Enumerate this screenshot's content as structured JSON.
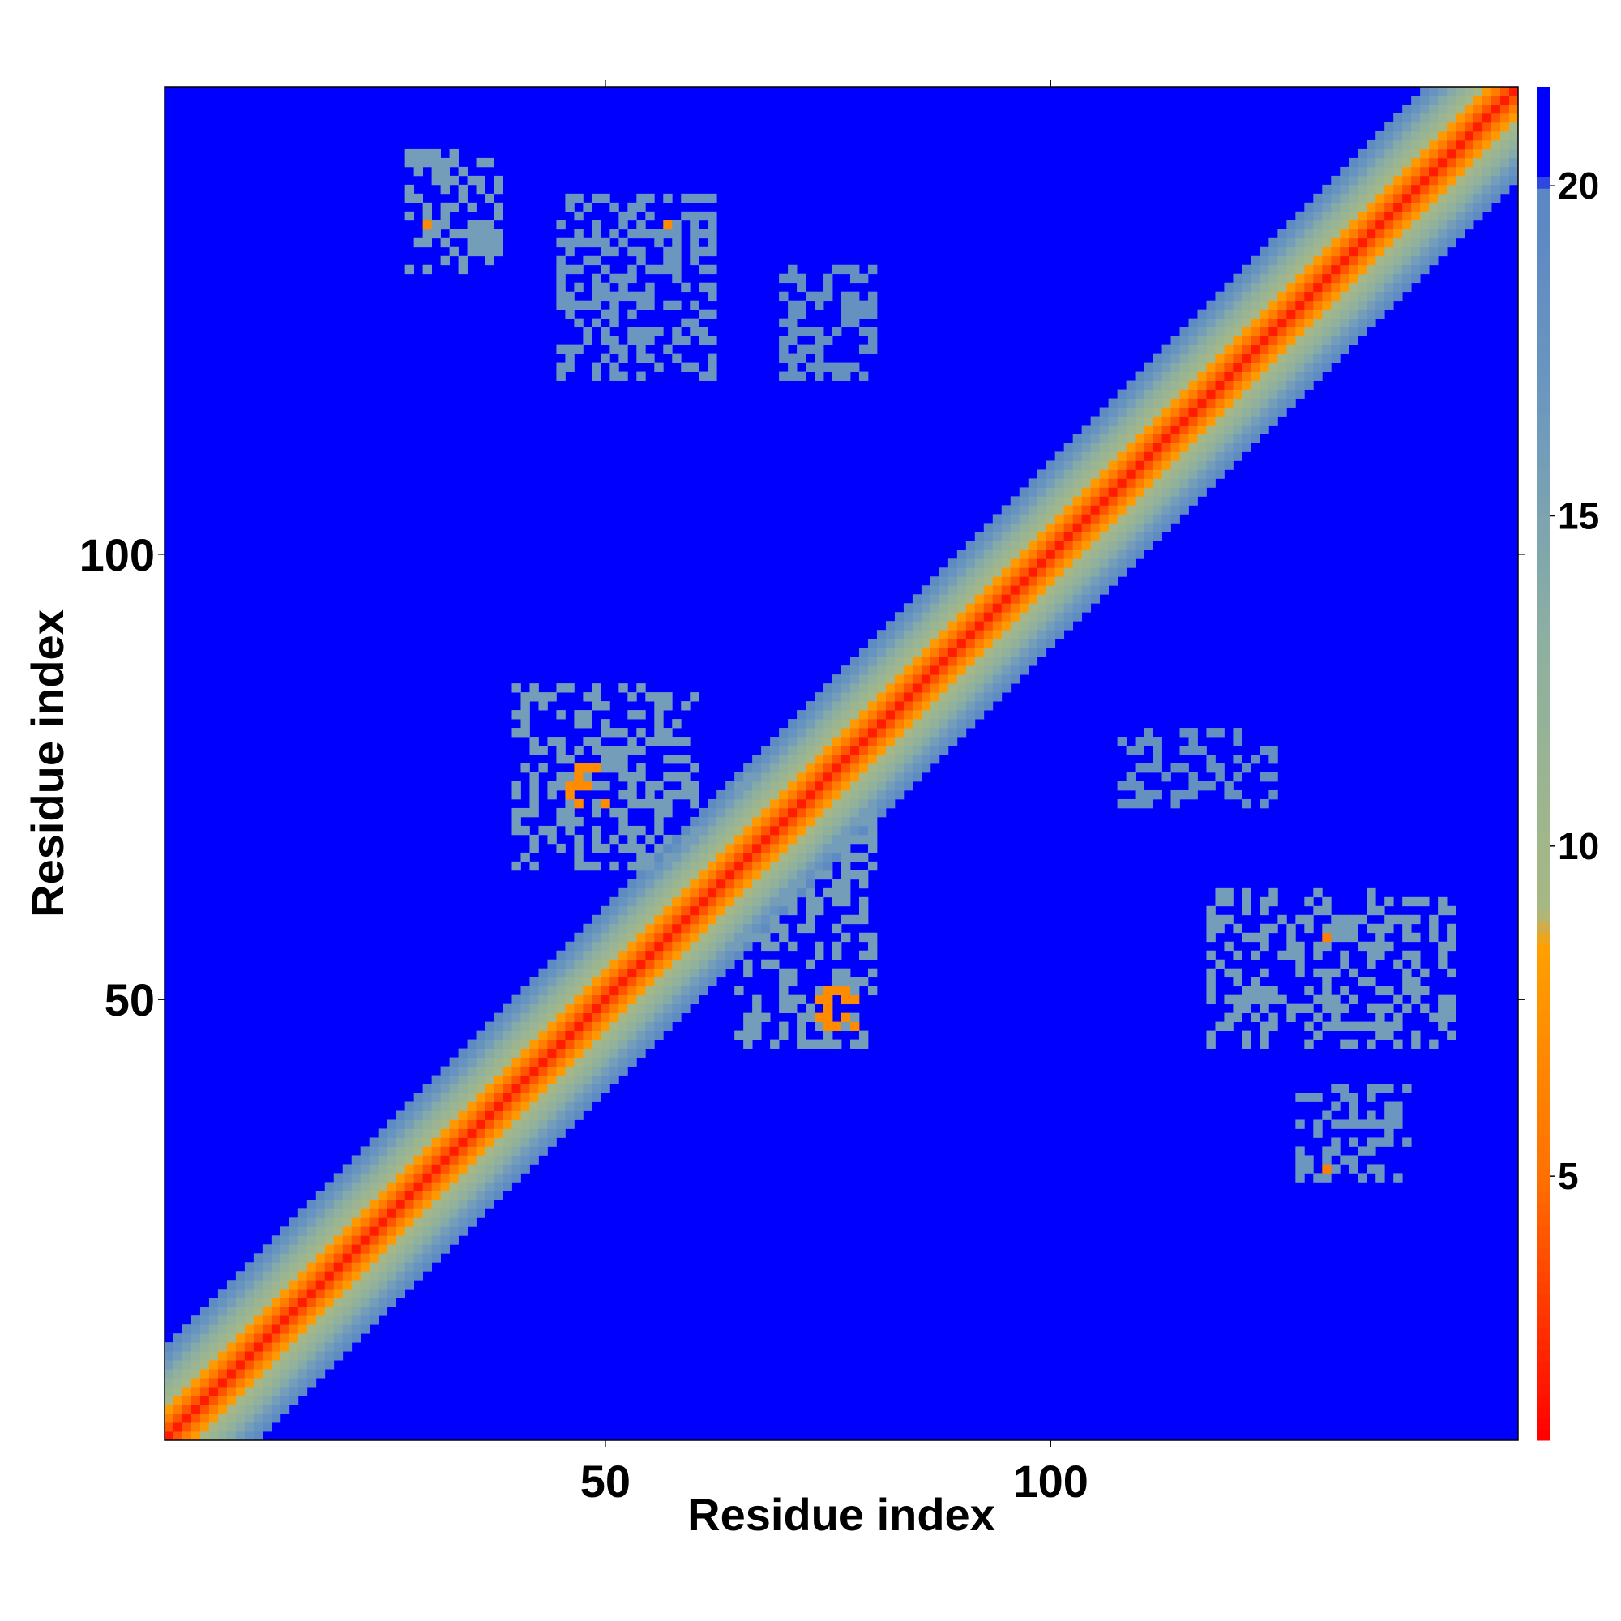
{
  "chart_data": {
    "type": "heatmap",
    "title": "",
    "xlabel": "Residue index",
    "ylabel": "Residue index",
    "xlim": [
      1,
      152
    ],
    "ylim": [
      1,
      152
    ],
    "x_ticks": [
      50,
      100
    ],
    "y_ticks": [
      50,
      100
    ],
    "colorbar": {
      "range": [
        1,
        21.5
      ],
      "ticks": [
        5,
        10,
        15,
        20
      ],
      "position": "right",
      "stops": [
        {
          "value": 1,
          "color": "#ff0000"
        },
        {
          "value": 5,
          "color": "#ff7000"
        },
        {
          "value": 8.5,
          "color": "#ffa000"
        },
        {
          "value": 9,
          "color": "#a8b883"
        },
        {
          "value": 13,
          "color": "#8eb0a0"
        },
        {
          "value": 17,
          "color": "#6a96c0"
        },
        {
          "value": 20,
          "color": "#5a86c4"
        },
        {
          "value": 20.1,
          "color": "#0000ff"
        },
        {
          "value": 21.5,
          "color": "#0000ff"
        }
      ]
    },
    "diagonal_profile": [
      {
        "offset": 0,
        "value": 2
      },
      {
        "offset": 1,
        "value": 4
      },
      {
        "offset": 2,
        "value": 6
      },
      {
        "offset": 3,
        "value": 8
      },
      {
        "offset": 4,
        "value": 9.5
      },
      {
        "offset": 5,
        "value": 11
      },
      {
        "offset": 6,
        "value": 12.5
      },
      {
        "offset": 7,
        "value": 14
      },
      {
        "offset": 8,
        "value": 16
      },
      {
        "offset": 9,
        "value": 17.5
      },
      {
        "offset": 10,
        "value": 19
      }
    ],
    "contact_regions": [
      {
        "x": [
          65,
          80
        ],
        "y": [
          45,
          75
        ],
        "value": 16
      },
      {
        "x": [
          74,
          78
        ],
        "y": [
          47,
          51
        ],
        "value": 7
      },
      {
        "x": [
          40,
          60
        ],
        "y": [
          65,
          85
        ],
        "value": 16
      },
      {
        "x": [
          46,
          50
        ],
        "y": [
          72,
          76
        ],
        "value": 7
      },
      {
        "x": [
          28,
          38
        ],
        "y": [
          132,
          145
        ],
        "value": 16
      },
      {
        "x": [
          45,
          62
        ],
        "y": [
          120,
          140
        ],
        "value": 17
      },
      {
        "x": [
          70,
          80
        ],
        "y": [
          120,
          132
        ],
        "value": 18
      },
      {
        "x": [
          118,
          145
        ],
        "y": [
          45,
          62
        ],
        "value": 16
      },
      {
        "x": [
          128,
          140
        ],
        "y": [
          30,
          40
        ],
        "value": 17
      },
      {
        "x": [
          108,
          125
        ],
        "y": [
          72,
          80
        ],
        "value": 18
      }
    ],
    "contact_points": [
      {
        "x": 30,
        "y": 137,
        "value": 7
      },
      {
        "x": 57,
        "y": 137,
        "value": 7
      },
      {
        "x": 131,
        "y": 57,
        "value": 6
      },
      {
        "x": 131,
        "y": 31,
        "value": 6
      }
    ]
  }
}
